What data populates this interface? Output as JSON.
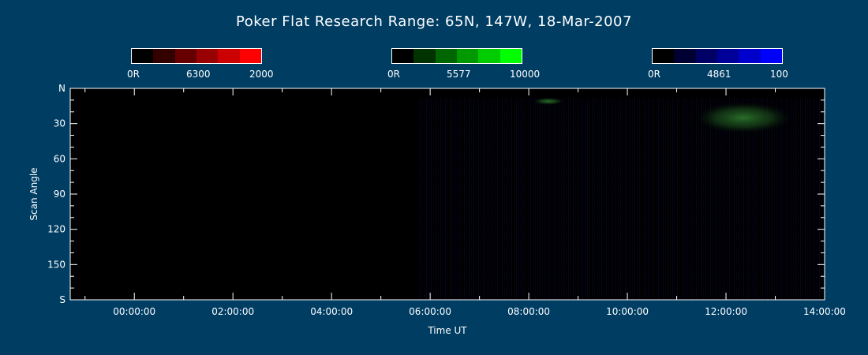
{
  "title": "Poker Flat Research Range: 65N, 147W, 18-Mar-2007",
  "legends": [
    {
      "min_label": "0R",
      "mid_label": "6300",
      "max_label": "2000",
      "colors": [
        "#000000",
        "#330000",
        "#660000",
        "#990000",
        "#cc0000",
        "#ff0000"
      ]
    },
    {
      "min_label": "0R",
      "mid_label": "5577",
      "max_label": "10000",
      "colors": [
        "#000000",
        "#003300",
        "#006600",
        "#009900",
        "#00cc00",
        "#00ff00"
      ]
    },
    {
      "min_label": "0R",
      "mid_label": "4861",
      "max_label": "100",
      "colors": [
        "#000000",
        "#000033",
        "#000066",
        "#000099",
        "#0000cc",
        "#0000ff"
      ]
    }
  ],
  "chart_data": {
    "type": "heatmap",
    "xlabel": "Time UT",
    "ylabel": "Scan Angle",
    "x_ticks": [
      "00:00:00",
      "02:00:00",
      "04:00:00",
      "06:00:00",
      "08:00:00",
      "10:00:00",
      "12:00:00",
      "14:00:00"
    ],
    "y_ticks": [
      "N",
      "30",
      "60",
      "90",
      "120",
      "150",
      "S"
    ],
    "x_range_hours": [
      -1.3,
      14.0
    ],
    "y_range_deg": [
      0,
      180
    ],
    "data_start_hour": 5.75,
    "green_emission_regions": [
      {
        "x_hours": [
          8.1,
          8.7
        ],
        "y_deg": [
          8,
          14
        ]
      },
      {
        "x_hours": [
          11.4,
          13.3
        ],
        "y_deg": [
          12,
          38
        ]
      }
    ],
    "background": "#000000"
  }
}
